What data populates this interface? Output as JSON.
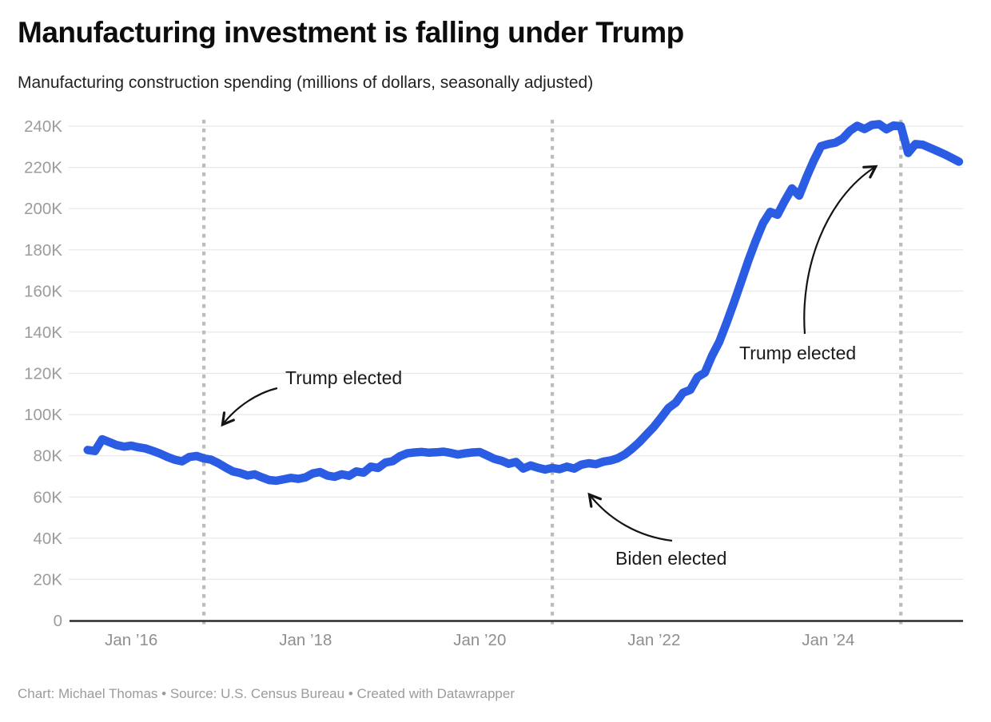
{
  "header": {
    "title": "Manufacturing investment is falling under Trump",
    "subtitle": "Manufacturing construction spending (millions of dollars, seasonally adjusted)"
  },
  "footer": {
    "text": "Chart: Michael Thomas • Source: U.S. Census Bureau • Created with Datawrapper"
  },
  "chart_data": {
    "type": "line",
    "title": "Manufacturing investment is falling under Trump",
    "subtitle": "Manufacturing construction spending (millions of dollars, seasonally adjusted)",
    "series_name": "Manufacturing construction spending (millions of dollars)",
    "frequency": "monthly",
    "x_start": "2015-07",
    "x_end": "2025-07",
    "ylim": [
      0,
      240000
    ],
    "grid": "horizontal",
    "legend": "none",
    "line_color": "#2b5ce4",
    "event_line_color": "#bcbcbc",
    "grid_color": "#e7e7e7",
    "axis_label_color": "#9c9c9c",
    "yticks": {
      "values": [
        0,
        20000,
        40000,
        60000,
        80000,
        100000,
        120000,
        140000,
        160000,
        180000,
        200000,
        220000,
        240000
      ],
      "labels": [
        "0",
        "20K",
        "40K",
        "60K",
        "80K",
        "100K",
        "120K",
        "140K",
        "160K",
        "180K",
        "200K",
        "220K",
        "240K"
      ]
    },
    "xticks": [
      {
        "label": "Jan ’16",
        "month": "2016-01",
        "index": 6
      },
      {
        "label": "Jan ’18",
        "month": "2018-01",
        "index": 30
      },
      {
        "label": "Jan ’20",
        "month": "2020-01",
        "index": 54
      },
      {
        "label": "Jan ’22",
        "month": "2022-01",
        "index": 78
      },
      {
        "label": "Jan ’24",
        "month": "2024-01",
        "index": 102
      }
    ],
    "event_lines": [
      {
        "month": "2016-11",
        "index": 16,
        "label": "Trump elected"
      },
      {
        "month": "2020-11",
        "index": 64,
        "label": "Biden elected"
      },
      {
        "month": "2024-11",
        "index": 112,
        "label": "Trump elected"
      }
    ],
    "annotations": [
      {
        "text": "Trump elected",
        "points_to_month": "2016-11"
      },
      {
        "text": "Biden elected",
        "points_to_month": "2020-11"
      },
      {
        "text": "Trump elected",
        "points_to_month": "2024-11"
      }
    ],
    "values": [
      82800,
      82300,
      88000,
      86600,
      85200,
      84400,
      84900,
      84100,
      83500,
      82300,
      81000,
      79400,
      78100,
      77300,
      79400,
      79900,
      78700,
      78100,
      76400,
      74300,
      72400,
      71600,
      70400,
      71000,
      69500,
      68200,
      67900,
      68600,
      69300,
      68800,
      69500,
      71400,
      72100,
      70400,
      69800,
      71000,
      70300,
      72400,
      71800,
      74700,
      74100,
      76700,
      77400,
      79800,
      81200,
      81600,
      81900,
      81500,
      81700,
      82000,
      81400,
      80600,
      81200,
      81600,
      81800,
      80200,
      78500,
      77600,
      76100,
      77000,
      73800,
      75300,
      74200,
      73300,
      74100,
      73500,
      74700,
      73800,
      75700,
      76400,
      75900,
      77100,
      77700,
      78800,
      80700,
      83500,
      86700,
      90400,
      94100,
      98600,
      103200,
      105800,
      110600,
      112000,
      118200,
      120300,
      128600,
      135400,
      144600,
      154300,
      164500,
      174800,
      184200,
      192800,
      198400,
      197000,
      203700,
      209800,
      206300,
      215200,
      223300,
      230300,
      231300,
      232000,
      234000,
      237800,
      240200,
      238600,
      240600,
      241000,
      238500,
      240300,
      240000,
      227000,
      231300,
      231000,
      229500,
      228000,
      226400,
      224600,
      222800
    ]
  }
}
